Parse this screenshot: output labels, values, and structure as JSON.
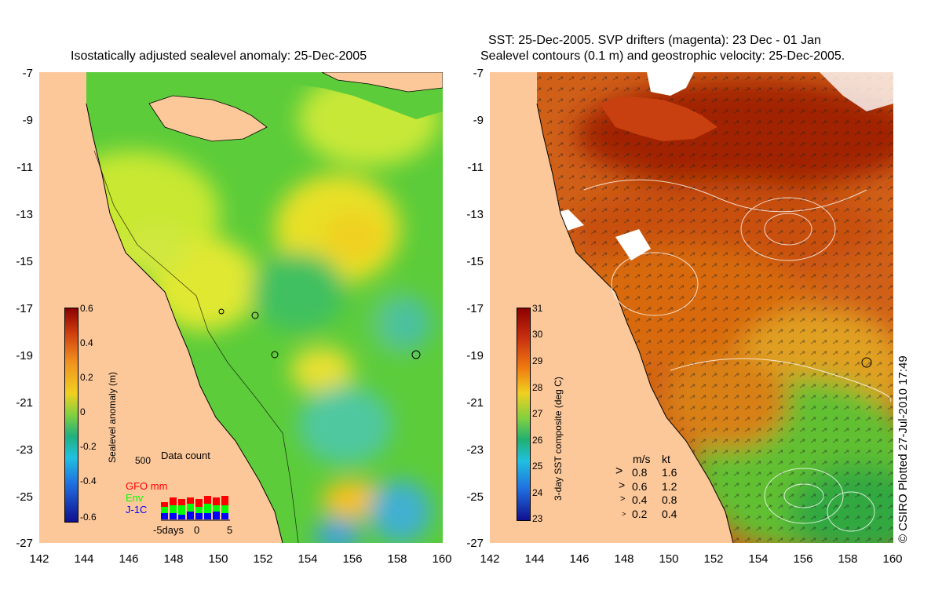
{
  "left_panel": {
    "title": "Isostatically adjusted sealevel anomaly: 25-Dec-2005",
    "colorbar": {
      "label": "Sealevel anomaly (m)",
      "ticks": [
        "0.6",
        "0.4",
        "0.2",
        "0",
        "-0.2",
        "-0.4",
        "-0.6"
      ]
    },
    "data_count": {
      "title": "Data count",
      "max_label": "500",
      "legend": [
        {
          "label": "GFO mm",
          "color": "#ff0000"
        },
        {
          "label": "Env",
          "color": "#00ff00"
        },
        {
          "label": "J-1C",
          "color": "#0000ff"
        }
      ],
      "axis_labels": [
        "-5days",
        "0",
        "5"
      ]
    }
  },
  "right_panel": {
    "title_line1": "SST: 25-Dec-2005. SVP drifters (magenta): 23 Dec - 01 Jan",
    "title_line2": "Sealevel contours (0.1 m) and geostrophic velocity: 25-Dec-2005.",
    "colorbar": {
      "label": "3-day SST composite (deg C)",
      "ticks": [
        "31",
        "30",
        "29",
        "28",
        "27",
        "26",
        "25",
        "24",
        "23"
      ]
    },
    "velocity_legend": {
      "header_ms": "m/s",
      "header_kt": "kt",
      "rows": [
        {
          "ms": "0.8",
          "kt": "1.6"
        },
        {
          "ms": "0.6",
          "kt": "1.2"
        },
        {
          "ms": "0.4",
          "kt": "0.8"
        },
        {
          "ms": "0.2",
          "kt": "0.4"
        }
      ]
    },
    "credit": "© CSIRO Plotted 27-Jul-2010 17:49"
  },
  "axes": {
    "lat_ticks": [
      "-7",
      "-9",
      "-11",
      "-13",
      "-15",
      "-17",
      "-19",
      "-21",
      "-23",
      "-25",
      "-27"
    ],
    "lon_ticks": [
      "142",
      "144",
      "146",
      "148",
      "150",
      "152",
      "154",
      "156",
      "158",
      "160"
    ]
  },
  "colors": {
    "land": "#fcc89a",
    "sla_low": "#1010a0",
    "sla_high": "#8b0000",
    "sst_warm": "#b83000",
    "sst_cool": "#30a030"
  }
}
